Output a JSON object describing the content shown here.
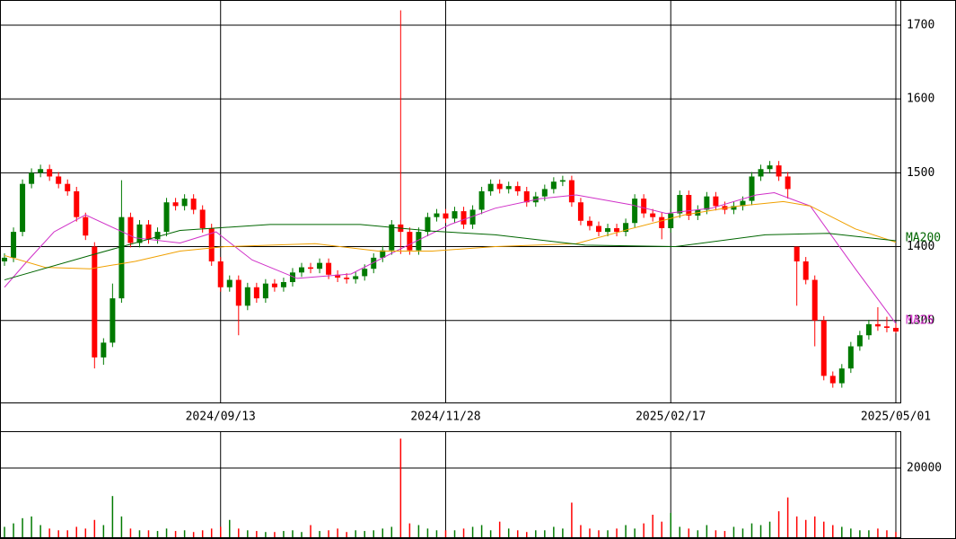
{
  "chart_data": {
    "type": "candlestick",
    "categories": [
      null,
      null,
      null,
      null,
      null,
      null,
      null,
      null,
      null,
      null,
      null,
      null,
      null,
      null,
      null,
      null,
      null,
      null,
      null,
      null,
      null,
      null,
      null,
      null,
      "2024/09/13",
      null,
      null,
      null,
      null,
      null,
      null,
      null,
      null,
      null,
      null,
      null,
      null,
      null,
      null,
      null,
      null,
      null,
      null,
      null,
      null,
      null,
      null,
      null,
      null,
      "2024/11/28",
      null,
      null,
      null,
      null,
      null,
      null,
      null,
      null,
      null,
      null,
      null,
      null,
      null,
      null,
      null,
      null,
      null,
      null,
      null,
      null,
      null,
      null,
      null,
      null,
      "2025/02/17",
      null,
      null,
      null,
      null,
      null,
      null,
      null,
      null,
      null,
      null,
      null,
      null,
      null,
      null,
      null,
      null,
      null,
      null,
      null,
      null,
      null,
      null,
      null,
      null,
      "2025/05/01"
    ],
    "open": [
      1380,
      1385,
      1420,
      1485,
      1500,
      1505,
      1495,
      1485,
      1475,
      1440,
      1400,
      1250,
      1270,
      1330,
      1440,
      1405,
      1430,
      1410,
      1420,
      1460,
      1455,
      1465,
      1450,
      1425,
      1380,
      1345,
      1355,
      1320,
      1345,
      1330,
      1350,
      1345,
      1352,
      1365,
      1372,
      1370,
      1378,
      1362,
      1358,
      1356,
      1360,
      1370,
      1385,
      1395,
      1430,
      1420,
      1395,
      1420,
      1440,
      1445,
      1438,
      1448,
      1430,
      1450,
      1475,
      1485,
      1478,
      1482,
      1475,
      1460,
      1468,
      1478,
      1488,
      1490,
      1460,
      1435,
      1428,
      1420,
      1425,
      1420,
      1432,
      1465,
      1445,
      1440,
      1425,
      1445,
      1470,
      1442,
      1450,
      1468,
      1455,
      1450,
      1455,
      1462,
      1495,
      1505,
      1510,
      1495,
      1400,
      1380,
      1355,
      1300,
      1225,
      1215,
      1235,
      1265,
      1280,
      1295,
      1292,
      1290
    ],
    "high": [
      1391,
      1426,
      1491,
      1506,
      1511,
      1511,
      1501,
      1491,
      1481,
      1446,
      1406,
      1276,
      1350,
      1490,
      1446,
      1436,
      1436,
      1426,
      1466,
      1466,
      1471,
      1471,
      1456,
      1431,
      1386,
      1361,
      1361,
      1351,
      1351,
      1356,
      1356,
      1358,
      1371,
      1378,
      1378,
      1384,
      1384,
      1368,
      1364,
      1366,
      1376,
      1391,
      1401,
      1436,
      1720,
      1426,
      1426,
      1446,
      1451,
      1451,
      1454,
      1454,
      1456,
      1481,
      1491,
      1491,
      1488,
      1488,
      1481,
      1474,
      1484,
      1494,
      1496,
      1496,
      1466,
      1441,
      1434,
      1431,
      1431,
      1438,
      1471,
      1471,
      1451,
      1446,
      1451,
      1476,
      1476,
      1456,
      1474,
      1474,
      1461,
      1461,
      1468,
      1501,
      1511,
      1516,
      1516,
      1501,
      1400,
      1386,
      1361,
      1306,
      1231,
      1241,
      1271,
      1286,
      1301,
      1318,
      1305,
      1296
    ],
    "low": [
      1374,
      1379,
      1414,
      1479,
      1494,
      1489,
      1479,
      1469,
      1434,
      1409,
      1235,
      1240,
      1264,
      1324,
      1399,
      1399,
      1404,
      1404,
      1414,
      1449,
      1449,
      1444,
      1419,
      1374,
      1339,
      1339,
      1280,
      1314,
      1324,
      1324,
      1339,
      1339,
      1346,
      1359,
      1364,
      1364,
      1356,
      1352,
      1350,
      1350,
      1354,
      1364,
      1379,
      1389,
      1390,
      1389,
      1389,
      1414,
      1434,
      1432,
      1432,
      1424,
      1424,
      1444,
      1469,
      1472,
      1472,
      1469,
      1454,
      1454,
      1462,
      1472,
      1482,
      1454,
      1429,
      1422,
      1414,
      1414,
      1414,
      1414,
      1426,
      1439,
      1434,
      1410,
      1419,
      1439,
      1436,
      1436,
      1444,
      1449,
      1444,
      1444,
      1449,
      1456,
      1489,
      1499,
      1489,
      1465,
      1320,
      1349,
      1265,
      1219,
      1209,
      1209,
      1229,
      1259,
      1274,
      1286,
      1284,
      1283
    ],
    "close": [
      1385,
      1420,
      1485,
      1500,
      1505,
      1495,
      1485,
      1475,
      1440,
      1415,
      1250,
      1270,
      1330,
      1440,
      1405,
      1430,
      1410,
      1420,
      1460,
      1455,
      1465,
      1450,
      1425,
      1380,
      1345,
      1355,
      1320,
      1345,
      1330,
      1350,
      1345,
      1352,
      1365,
      1372,
      1370,
      1378,
      1362,
      1358,
      1356,
      1360,
      1370,
      1385,
      1395,
      1430,
      1420,
      1395,
      1420,
      1440,
      1445,
      1438,
      1448,
      1430,
      1450,
      1475,
      1485,
      1478,
      1482,
      1475,
      1460,
      1468,
      1478,
      1488,
      1490,
      1460,
      1435,
      1428,
      1420,
      1425,
      1420,
      1432,
      1465,
      1445,
      1440,
      1425,
      1445,
      1470,
      1442,
      1450,
      1468,
      1455,
      1450,
      1455,
      1462,
      1495,
      1505,
      1510,
      1495,
      1478,
      1380,
      1355,
      1300,
      1225,
      1215,
      1235,
      1265,
      1280,
      1295,
      1292,
      1290,
      1285
    ],
    "volume": [
      3000,
      4000,
      5500,
      6000,
      3500,
      2500,
      2000,
      2000,
      3000,
      2500,
      5000,
      3500,
      11900,
      6000,
      2500,
      2000,
      2000,
      1800,
      2500,
      1800,
      2000,
      1500,
      2000,
      2500,
      3000,
      5000,
      2500,
      2000,
      1800,
      1500,
      1500,
      1800,
      2000,
      1500,
      3500,
      1800,
      2000,
      2500,
      1500,
      2000,
      1800,
      2000,
      2500,
      3000,
      28500,
      4000,
      3500,
      2500,
      2000,
      2000,
      2000,
      2500,
      3000,
      3500,
      2000,
      4500,
      2500,
      2000,
      1500,
      2000,
      2000,
      3000,
      2500,
      10000,
      3500,
      2500,
      2000,
      2000,
      2500,
      3500,
      2500,
      4000,
      6500,
      4500,
      7000,
      3000,
      2500,
      2000,
      3500,
      2000,
      1800,
      3000,
      2500,
      4000,
      3500,
      4500,
      7500,
      11500,
      6000,
      5000,
      6000,
      4500,
      3500,
      3000,
      2500,
      2000,
      2000,
      2500,
      2000,
      1500
    ],
    "up_color": "#007a00",
    "down_color": "#ff0000",
    "xlim": [
      -0.5,
      99.5
    ],
    "ylim": [
      1189,
      1734
    ],
    "yticks": [
      1300,
      1400,
      1500,
      1600,
      1700
    ],
    "volume_ylim": [
      0,
      30650
    ],
    "volume_yticks": [
      20000
    ],
    "grid": true,
    "ma": [
      {
        "name": "MA25",
        "color": "#d030c8",
        "x": [
          0,
          2.5,
          5.5,
          9,
          14.5,
          19.5,
          23.5,
          27.5,
          32.5,
          38.5,
          43.5,
          49.5,
          54.5,
          59.5,
          63.5,
          69.5,
          73.5,
          78.5,
          83.5,
          85.5,
          89.5,
          94.5,
          99
        ],
        "values": [
          1345,
          1380,
          1420,
          1443,
          1412,
          1405,
          1420,
          1382,
          1357,
          1363,
          1394,
          1430,
          1452,
          1465,
          1470,
          1457,
          1445,
          1452,
          1470,
          1473,
          1455,
          1370,
          1296
        ]
      },
      {
        "color": "#f0a000",
        "x": [
          0,
          4.5,
          9.5,
          14.5,
          19.5,
          24.5,
          34.5,
          41.5,
          47.5,
          54.5,
          63.5,
          69.5,
          75.5,
          81.5,
          86.5,
          89.5,
          94.5,
          99
        ],
        "values": [
          1388,
          1372,
          1370,
          1380,
          1394,
          1400,
          1404,
          1394,
          1394,
          1400,
          1404,
          1424,
          1443,
          1455,
          1461,
          1455,
          1424,
          1406
        ]
      },
      {
        "name": "MA200",
        "color": "#006600",
        "x": [
          0,
          9.5,
          19.5,
          29.5,
          39.5,
          47.5,
          54.5,
          64.5,
          74.5,
          84.5,
          91.5,
          99
        ],
        "values": [
          1355,
          1388,
          1422,
          1430,
          1430,
          1421,
          1416,
          1402,
          1400,
          1416,
          1418,
          1408
        ]
      }
    ]
  }
}
